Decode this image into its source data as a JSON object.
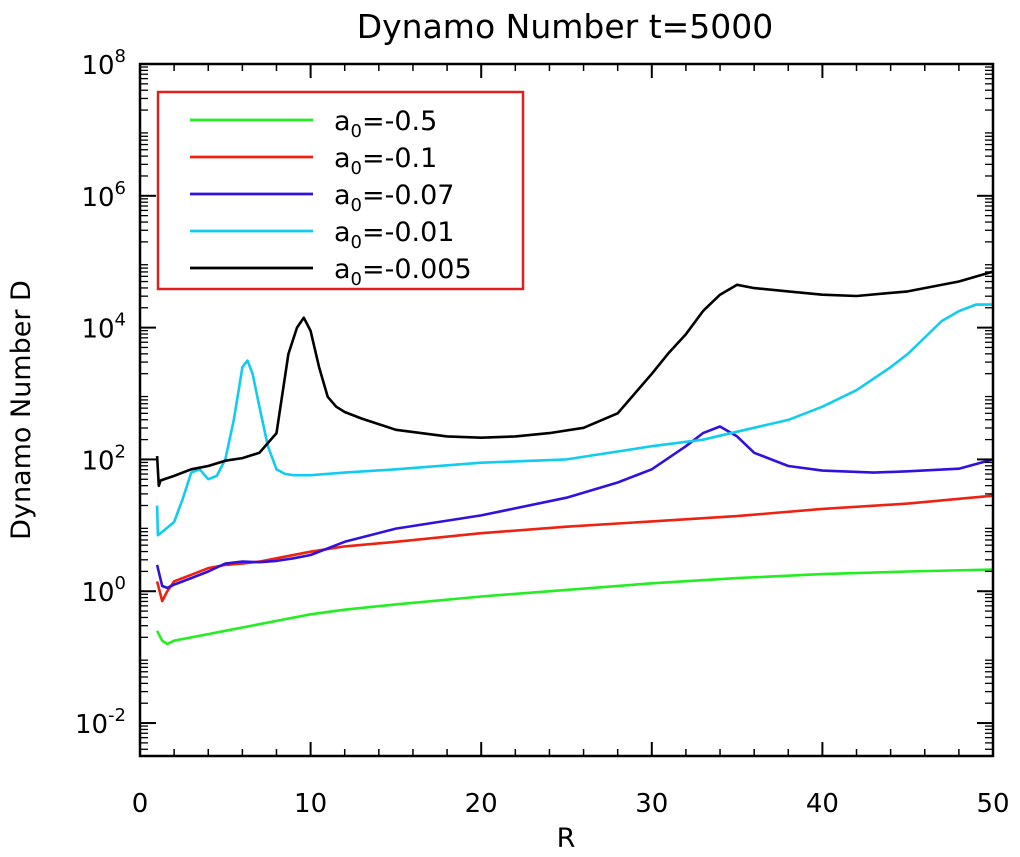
{
  "chart_data": {
    "type": "line",
    "title": "Dynamo Number t=5000",
    "xlabel": "R",
    "ylabel": "Dynamo Number D",
    "xlim": [
      0,
      50
    ],
    "ylim_log10": [
      -2.5,
      8
    ],
    "y_scale": "log",
    "x_ticks": [
      "0",
      "10",
      "20",
      "30",
      "40",
      "50"
    ],
    "y_tick_base": "10",
    "y_ticks": [
      {
        "exp": "-2",
        "log10": -2
      },
      {
        "exp": "0",
        "log10": 0
      },
      {
        "exp": "2",
        "log10": 2
      },
      {
        "exp": "4",
        "log10": 4
      },
      {
        "exp": "6",
        "log10": 6
      },
      {
        "exp": "8",
        "log10": 8
      }
    ],
    "legend_position": "top-left",
    "series": [
      {
        "name": "a0=-0.5",
        "label_prefix": "a",
        "label_sub": "0",
        "label_suffix": "=-0.5",
        "color": "#22ee22",
        "x": [
          1,
          1.3,
          1.6,
          2,
          3,
          4,
          5,
          6,
          7,
          8,
          10,
          12,
          15,
          20,
          25,
          30,
          35,
          40,
          45,
          50
        ],
        "log10_y": [
          -0.6,
          -0.75,
          -0.8,
          -0.75,
          -0.7,
          -0.65,
          -0.6,
          -0.55,
          -0.5,
          -0.45,
          -0.35,
          -0.28,
          -0.2,
          -0.08,
          0.02,
          0.12,
          0.2,
          0.26,
          0.3,
          0.33
        ]
      },
      {
        "name": "a0=-0.1",
        "label_prefix": "a",
        "label_sub": "0",
        "label_suffix": "=-0.1",
        "color": "#ee2211",
        "x": [
          1,
          1.3,
          1.6,
          2,
          3,
          4,
          5,
          6,
          7,
          8,
          10,
          12,
          15,
          20,
          25,
          30,
          35,
          40,
          45,
          50
        ],
        "log10_y": [
          0.15,
          -0.15,
          0.0,
          0.15,
          0.25,
          0.35,
          0.4,
          0.42,
          0.45,
          0.5,
          0.6,
          0.68,
          0.75,
          0.88,
          0.98,
          1.06,
          1.14,
          1.25,
          1.33,
          1.45
        ]
      },
      {
        "name": "a0=-0.07",
        "label_prefix": "a",
        "label_sub": "0",
        "label_suffix": "=-0.07",
        "color": "#3311dd",
        "x": [
          1,
          1.3,
          1.6,
          2,
          3,
          4,
          5,
          6,
          7,
          8,
          9,
          10,
          12,
          15,
          20,
          25,
          28,
          30,
          32,
          33,
          34,
          35,
          36,
          38,
          40,
          43,
          45,
          48,
          50
        ],
        "log10_y": [
          0.4,
          0.08,
          0.05,
          0.1,
          0.2,
          0.3,
          0.42,
          0.45,
          0.44,
          0.46,
          0.5,
          0.55,
          0.75,
          0.95,
          1.15,
          1.42,
          1.65,
          1.85,
          2.2,
          2.4,
          2.5,
          2.35,
          2.1,
          1.9,
          1.83,
          1.8,
          1.82,
          1.86,
          2.0
        ]
      },
      {
        "name": "a0=-0.01",
        "label_prefix": "a",
        "label_sub": "0",
        "label_suffix": "=-0.01",
        "color": "#11ccee",
        "x": [
          1,
          1.05,
          1.3,
          2,
          2.5,
          3,
          3.5,
          4,
          4.5,
          5,
          5.5,
          6,
          6.3,
          6.6,
          7,
          7.5,
          8,
          8.5,
          9,
          10,
          12,
          15,
          20,
          25,
          30,
          33,
          35,
          38,
          40,
          42,
          44,
          45,
          46,
          47,
          48,
          49,
          50
        ],
        "log10_y": [
          1.3,
          0.85,
          0.9,
          1.05,
          1.4,
          1.8,
          1.85,
          1.7,
          1.75,
          2.0,
          2.6,
          3.4,
          3.5,
          3.3,
          2.8,
          2.2,
          1.85,
          1.78,
          1.76,
          1.76,
          1.8,
          1.85,
          1.95,
          2.0,
          2.2,
          2.3,
          2.42,
          2.6,
          2.8,
          3.05,
          3.4,
          3.6,
          3.85,
          4.1,
          4.25,
          4.35,
          4.35
        ]
      },
      {
        "name": "a0=-0.005",
        "label_prefix": "a",
        "label_sub": "0",
        "label_suffix": "=-0.005",
        "color": "#000000",
        "x": [
          1,
          1.1,
          1.2,
          2,
          3,
          4,
          5,
          6,
          7,
          8,
          8.7,
          9.2,
          9.6,
          10,
          10.5,
          11,
          11.5,
          12,
          13,
          15,
          18,
          20,
          22,
          24,
          26,
          28,
          30,
          31,
          32,
          33,
          34,
          35,
          36,
          38,
          40,
          42,
          45,
          48,
          50
        ],
        "log10_y": [
          2.05,
          1.6,
          1.68,
          1.75,
          1.85,
          1.9,
          1.98,
          2.02,
          2.1,
          2.4,
          3.6,
          4.0,
          4.15,
          3.95,
          3.4,
          2.95,
          2.8,
          2.72,
          2.62,
          2.45,
          2.35,
          2.33,
          2.35,
          2.4,
          2.48,
          2.7,
          3.3,
          3.62,
          3.9,
          4.25,
          4.5,
          4.65,
          4.6,
          4.55,
          4.5,
          4.48,
          4.55,
          4.7,
          4.85
        ]
      }
    ]
  }
}
